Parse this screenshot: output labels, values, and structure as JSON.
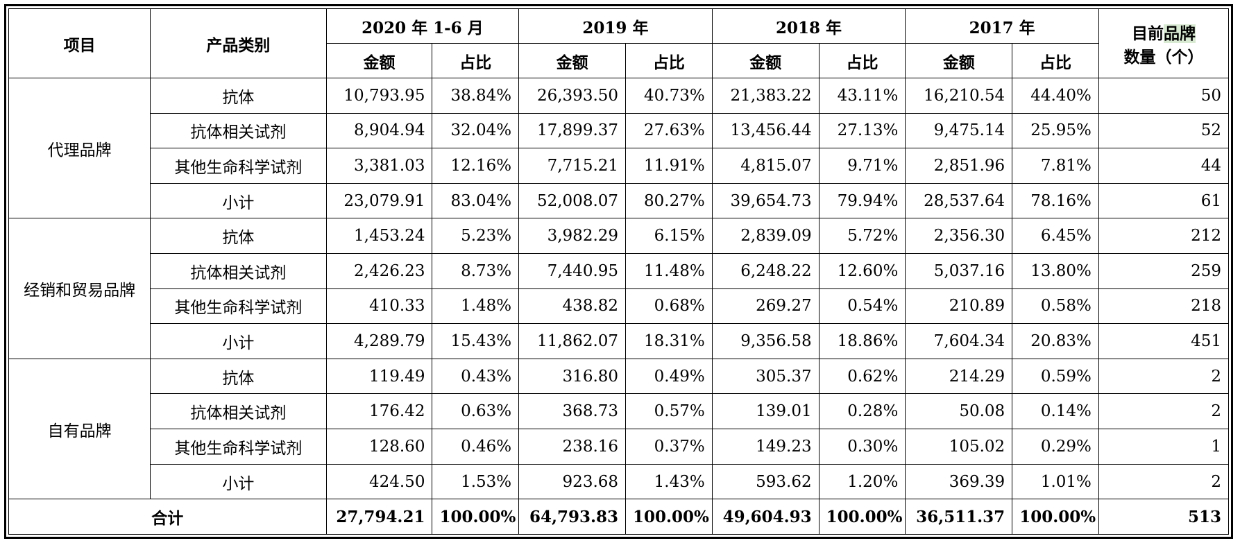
{
  "headers": {
    "item": "项目",
    "category": "产品类别",
    "periods": [
      "2020 年 1-6 月",
      "2019 年",
      "2018 年",
      "2017 年"
    ],
    "amount": "金额",
    "ratio": "占比",
    "brand_count_part1": "目前",
    "brand_count_part2": "品牌",
    "brand_count_line2": "数量（个）"
  },
  "groups": [
    {
      "name": "代理品牌",
      "rows": [
        {
          "category": "抗体",
          "values": [
            "10,793.95",
            "38.84%",
            "26,393.50",
            "40.73%",
            "21,383.22",
            "43.11%",
            "16,210.54",
            "44.40%"
          ],
          "count": "50"
        },
        {
          "category": "抗体相关试剂",
          "values": [
            "8,904.94",
            "32.04%",
            "17,899.37",
            "27.63%",
            "13,456.44",
            "27.13%",
            "9,475.14",
            "25.95%"
          ],
          "count": "52"
        },
        {
          "category": "其他生命科学试剂",
          "values": [
            "3,381.03",
            "12.16%",
            "7,715.21",
            "11.91%",
            "4,815.07",
            "9.71%",
            "2,851.96",
            "7.81%"
          ],
          "count": "44"
        },
        {
          "category": "小计",
          "values": [
            "23,079.91",
            "83.04%",
            "52,008.07",
            "80.27%",
            "39,654.73",
            "79.94%",
            "28,537.64",
            "78.16%"
          ],
          "count": "61"
        }
      ]
    },
    {
      "name": "经销和贸易品牌",
      "rows": [
        {
          "category": "抗体",
          "values": [
            "1,453.24",
            "5.23%",
            "3,982.29",
            "6.15%",
            "2,839.09",
            "5.72%",
            "2,356.30",
            "6.45%"
          ],
          "count": "212"
        },
        {
          "category": "抗体相关试剂",
          "values": [
            "2,426.23",
            "8.73%",
            "7,440.95",
            "11.48%",
            "6,248.22",
            "12.60%",
            "5,037.16",
            "13.80%"
          ],
          "count": "259"
        },
        {
          "category": "其他生命科学试剂",
          "values": [
            "410.33",
            "1.48%",
            "438.82",
            "0.68%",
            "269.27",
            "0.54%",
            "210.89",
            "0.58%"
          ],
          "count": "218"
        },
        {
          "category": "小计",
          "values": [
            "4,289.79",
            "15.43%",
            "11,862.07",
            "18.31%",
            "9,356.58",
            "18.86%",
            "7,604.34",
            "20.83%"
          ],
          "count": "451"
        }
      ]
    },
    {
      "name": "自有品牌",
      "rows": [
        {
          "category": "抗体",
          "values": [
            "119.49",
            "0.43%",
            "316.80",
            "0.49%",
            "305.37",
            "0.62%",
            "214.29",
            "0.59%"
          ],
          "count": "2"
        },
        {
          "category": "抗体相关试剂",
          "values": [
            "176.42",
            "0.63%",
            "368.73",
            "0.57%",
            "139.01",
            "0.28%",
            "50.08",
            "0.14%"
          ],
          "count": "2"
        },
        {
          "category": "其他生命科学试剂",
          "values": [
            "128.60",
            "0.46%",
            "238.16",
            "0.37%",
            "149.23",
            "0.30%",
            "105.02",
            "0.29%"
          ],
          "count": "1"
        },
        {
          "category": "小计",
          "values": [
            "424.50",
            "1.53%",
            "923.68",
            "1.43%",
            "593.62",
            "1.20%",
            "369.39",
            "1.01%"
          ],
          "count": "2"
        }
      ]
    }
  ],
  "total": {
    "label": "合计",
    "values": [
      "27,794.21",
      "100.00%",
      "64,793.83",
      "100.00%",
      "49,604.93",
      "100.00%",
      "36,511.37",
      "100.00%"
    ],
    "count": "513"
  }
}
